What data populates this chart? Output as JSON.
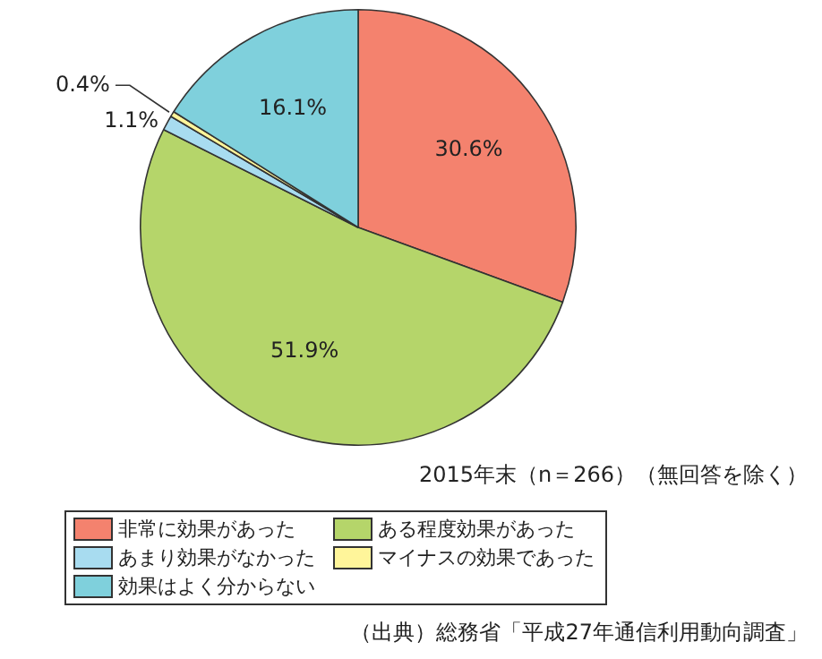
{
  "chart_data": {
    "type": "pie",
    "categories": [
      "非常に効果があった",
      "ある程度効果があった",
      "あまり効果がなかった",
      "マイナスの効果であった",
      "効果はよく分からない"
    ],
    "values": [
      30.6,
      51.9,
      1.1,
      0.4,
      16.1
    ],
    "value_labels": [
      "30.6%",
      "51.9%",
      "1.1%",
      "0.4%",
      "16.1%"
    ],
    "colors": [
      "#f4826e",
      "#b5d56a",
      "#a8dcf0",
      "#fff59a",
      "#7fd0dc"
    ],
    "legend": "bottom",
    "annotations": [
      "2015年末（n＝266）（無回答を除く）",
      "（出典）総務省「平成27年通信利用動向調査」"
    ]
  }
}
